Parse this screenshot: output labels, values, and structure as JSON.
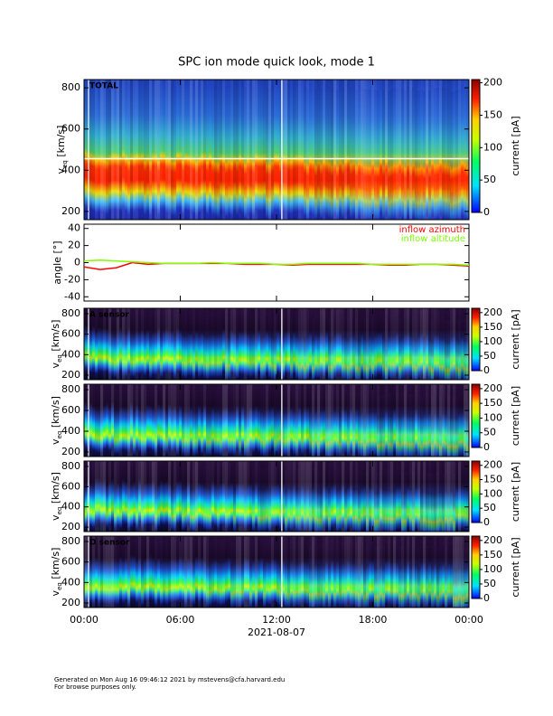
{
  "chart_data": [
    {
      "type": "spectrogram",
      "title": "SPC ion mode quick look, mode 1",
      "label": "TOTAL",
      "ylabel": {
        "main": "v",
        "sub": "eq",
        "rest": " [km/s]"
      },
      "ylim": [
        160,
        840
      ],
      "yticks": [
        200,
        400,
        600,
        800
      ],
      "colorbar": {
        "label": "current [pA]",
        "lim": [
          0,
          205
        ],
        "ticks": [
          0,
          50,
          100,
          150,
          200
        ]
      }
    },
    {
      "type": "line",
      "ylabel": "angle [°]",
      "ylim": [
        -45,
        45
      ],
      "yticks": [
        -40,
        -20,
        0,
        20,
        40
      ],
      "legend": "upper right",
      "x": [
        0,
        1,
        2,
        3,
        4,
        5,
        6,
        7,
        8,
        9,
        10,
        11,
        12,
        13,
        14,
        15,
        16,
        17,
        18,
        19,
        20,
        21,
        22,
        23,
        24
      ],
      "series": [
        {
          "name": "inflow azimuth",
          "color": "#ff0000",
          "values": [
            -5,
            -8,
            -6,
            0,
            -2,
            -1,
            -1,
            -1,
            -1,
            -1,
            -2,
            -2,
            -2,
            -3,
            -2,
            -2,
            -2,
            -2,
            -2,
            -3,
            -3,
            -2,
            -2,
            -3,
            -4
          ]
        },
        {
          "name": "inflow altitude",
          "color": "#7fff00",
          "values": [
            2,
            3,
            2,
            1,
            0,
            -1,
            -1,
            -1,
            0,
            -1,
            -1,
            -1,
            -2,
            -2,
            -1,
            -1,
            -1,
            -1,
            -2,
            -2,
            -2,
            -2,
            -2,
            -2,
            -3
          ]
        }
      ]
    },
    {
      "type": "spectrogram",
      "label": "A sensor",
      "ylabel": {
        "main": "v",
        "sub": "eq",
        "rest": " [km/s]"
      },
      "ylim": [
        156,
        853
      ],
      "yticks": [
        200,
        400,
        600,
        800
      ],
      "colorbar": {
        "label": "current [pA]",
        "lim": [
          0,
          215
        ],
        "ticks": [
          0,
          50,
          100,
          150,
          200
        ]
      }
    },
    {
      "type": "spectrogram",
      "ylabel": {
        "main": "v",
        "sub": "eq",
        "rest": " [km/s]"
      },
      "ylim": [
        156,
        853
      ],
      "yticks": [
        200,
        400,
        600,
        800
      ],
      "colorbar": {
        "label": "current [pA]",
        "lim": [
          0,
          215
        ],
        "ticks": [
          0,
          50,
          100,
          150,
          200
        ]
      }
    },
    {
      "type": "spectrogram",
      "ylabel": {
        "main": "v",
        "sub": "eq",
        "rest": " [km/s]"
      },
      "ylim": [
        156,
        853
      ],
      "yticks": [
        200,
        400,
        600,
        800
      ],
      "colorbar": {
        "label": "current [pA]",
        "lim": [
          0,
          215
        ],
        "ticks": [
          0,
          50,
          100,
          150,
          200
        ]
      }
    },
    {
      "type": "spectrogram",
      "label": "D sensor",
      "ylabel": {
        "main": "v",
        "sub": "eq",
        "rest": " [km/s]"
      },
      "ylim": [
        156,
        853
      ],
      "yticks": [
        200,
        400,
        600,
        800
      ],
      "colorbar": {
        "label": "current [pA]",
        "lim": [
          0,
          215
        ],
        "ticks": [
          0,
          50,
          100,
          150,
          200
        ]
      },
      "xlim": [
        0,
        24
      ],
      "xticks": [
        {
          "value": 0,
          "label": "00:00"
        },
        {
          "value": 6,
          "label": "06:00"
        },
        {
          "value": 12,
          "label": "12:00"
        },
        {
          "value": 18,
          "label": "18:00"
        },
        {
          "value": 24,
          "label": "00:00"
        }
      ],
      "xlabel": "2021-08-07"
    }
  ],
  "footer": [
    "Generated on Mon Aug 16 09:46:12 2021 by mstevens@cfa.harvard.edu",
    "For browse purposes only."
  ]
}
